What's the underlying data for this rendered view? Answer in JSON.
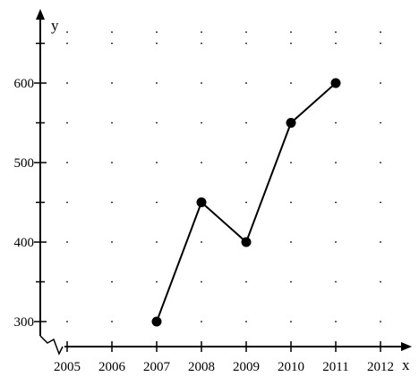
{
  "chart_data": {
    "type": "line",
    "xlabel": "x",
    "ylabel": "y",
    "x": [
      2007,
      2008,
      2009,
      2010,
      2011
    ],
    "series": [
      {
        "values": [
          300,
          450,
          400,
          550,
          600
        ]
      }
    ],
    "x_ticks": [
      2005,
      2006,
      2007,
      2008,
      2009,
      2010,
      2011,
      2012
    ],
    "y_ticks": [
      300,
      400,
      500,
      600
    ],
    "xlim": [
      2005,
      2012
    ],
    "ylim": [
      300,
      600
    ],
    "y_axis_break": true,
    "grid": "dotted",
    "colors": {
      "line": "#000000",
      "marker": "#000000",
      "grid": "#000000"
    }
  }
}
